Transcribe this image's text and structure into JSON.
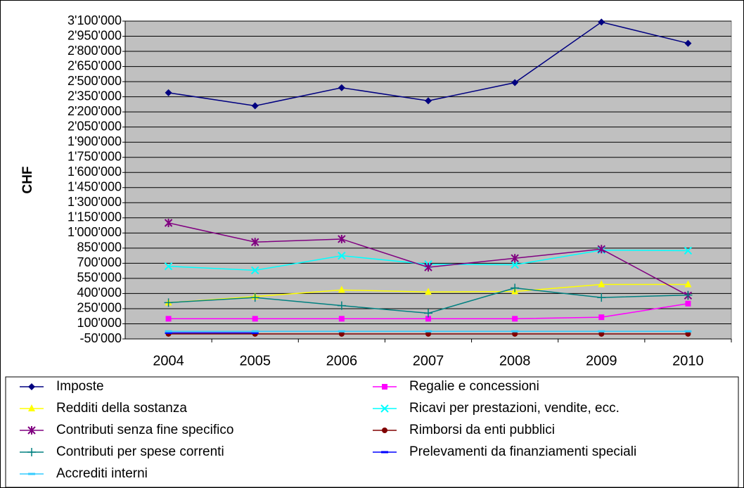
{
  "chart_data": {
    "type": "line",
    "y_label": "CHF",
    "categories": [
      "2004",
      "2005",
      "2006",
      "2007",
      "2008",
      "2009",
      "2010"
    ],
    "series": [
      {
        "name": "Imposte",
        "color": "#000080",
        "marker": "diamond",
        "values": [
          2390000,
          2260000,
          2440000,
          2310000,
          2490000,
          3090000,
          2880000
        ]
      },
      {
        "name": "Regalie e concessioni",
        "color": "#ff00ff",
        "marker": "square",
        "values": [
          150000,
          150000,
          150000,
          150000,
          150000,
          165000,
          300000
        ]
      },
      {
        "name": "Redditi della sostanza",
        "color": "#ffff00",
        "marker": "triangle",
        "values": [
          310000,
          370000,
          435000,
          415000,
          420000,
          490000,
          490000
        ]
      },
      {
        "name": "Ricavi per prestazioni, vendite, ecc.",
        "color": "#00ffff",
        "marker": "x",
        "values": [
          670000,
          630000,
          775000,
          690000,
          685000,
          830000,
          825000
        ]
      },
      {
        "name": "Contributi senza fine specifico",
        "color": "#800080",
        "marker": "star",
        "values": [
          1100000,
          910000,
          940000,
          660000,
          750000,
          840000,
          380000
        ]
      },
      {
        "name": "Rimborsi da enti pubblici",
        "color": "#800000",
        "marker": "circle",
        "values": [
          0,
          0,
          0,
          0,
          0,
          0,
          0
        ]
      },
      {
        "name": "Contributi per spese correnti",
        "color": "#008080",
        "marker": "plus",
        "values": [
          310000,
          360000,
          280000,
          205000,
          455000,
          360000,
          385000
        ]
      },
      {
        "name": "Prelevamenti da finanziamenti speciali",
        "color": "#0000ff",
        "marker": "dash",
        "values": [
          10000,
          10000,
          null,
          null,
          null,
          null,
          null
        ]
      },
      {
        "name": "Accrediti interni",
        "color": "#33ccff",
        "marker": "dash",
        "values": [
          25000,
          25000,
          25000,
          25000,
          25000,
          25000,
          25000
        ]
      }
    ],
    "ylim": [
      -50000,
      3100000
    ],
    "yticks": [
      {
        "value": -50000,
        "label": "-50'000"
      },
      {
        "value": 100000,
        "label": "100'000"
      },
      {
        "value": 250000,
        "label": "250'000"
      },
      {
        "value": 400000,
        "label": "400'000"
      },
      {
        "value": 550000,
        "label": "550'000"
      },
      {
        "value": 700000,
        "label": "700'000"
      },
      {
        "value": 850000,
        "label": "850'000"
      },
      {
        "value": 1000000,
        "label": "1'000'000"
      },
      {
        "value": 1150000,
        "label": "1'150'000"
      },
      {
        "value": 1300000,
        "label": "1'300'000"
      },
      {
        "value": 1450000,
        "label": "1'450'000"
      },
      {
        "value": 1600000,
        "label": "1'600'000"
      },
      {
        "value": 1750000,
        "label": "1'750'000"
      },
      {
        "value": 1900000,
        "label": "1'900'000"
      },
      {
        "value": 2050000,
        "label": "2'050'000"
      },
      {
        "value": 2200000,
        "label": "2'200'000"
      },
      {
        "value": 2350000,
        "label": "2'350'000"
      },
      {
        "value": 2500000,
        "label": "2'500'000"
      },
      {
        "value": 2650000,
        "label": "2'650'000"
      },
      {
        "value": 2800000,
        "label": "2'800'000"
      },
      {
        "value": 2950000,
        "label": "2'950'000"
      },
      {
        "value": 3100000,
        "label": "3'100'000"
      }
    ],
    "grid": true
  }
}
